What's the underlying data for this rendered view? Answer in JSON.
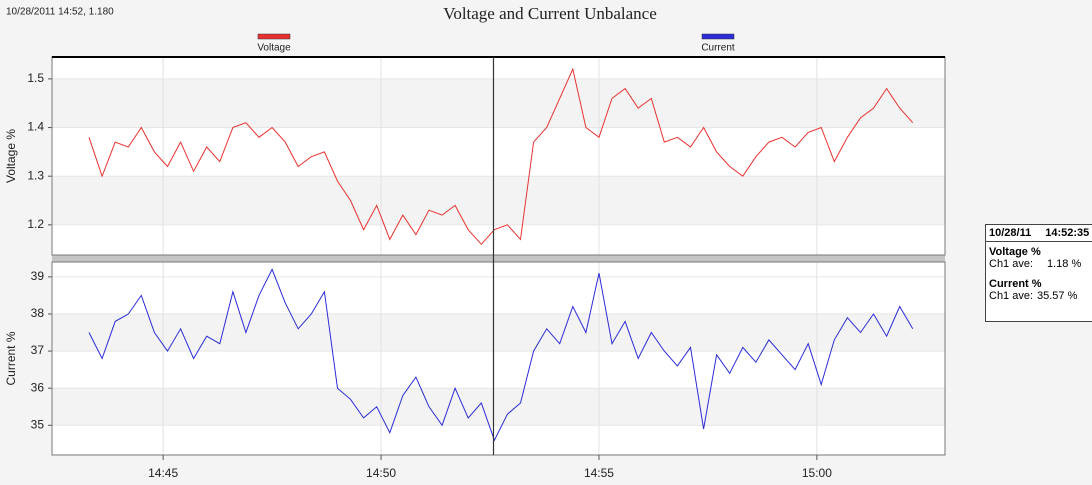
{
  "header": {
    "status": "10/28/2011 14:52, 1.180",
    "title": "Voltage and Current Unbalance"
  },
  "cursor": {
    "x": 892.58
  },
  "readout": {
    "date": "10/28/11",
    "time": "14:52:35",
    "groups": [
      {
        "title": "Voltage %",
        "label": "Ch1 ave:",
        "value": "1.18 %"
      },
      {
        "title": "Current %",
        "label": "Ch1 ave:",
        "value": "35.57 %"
      }
    ]
  },
  "chart_data": [
    {
      "type": "line",
      "y_label": "Voltage %",
      "x": [
        883.3,
        883.6,
        883.9,
        884.2,
        884.5,
        884.8,
        885.1,
        885.4,
        885.7,
        886.0,
        886.3,
        886.6,
        886.9,
        887.2,
        887.5,
        887.8,
        888.1,
        888.4,
        888.7,
        889.0,
        889.3,
        889.6,
        889.9,
        890.2,
        890.5,
        890.8,
        891.1,
        891.4,
        891.7,
        892.0,
        892.3,
        892.6,
        892.9,
        893.2,
        893.5,
        893.8,
        894.1,
        894.4,
        894.7,
        895.0,
        895.3,
        895.6,
        895.9,
        896.2,
        896.5,
        896.8,
        897.1,
        897.4,
        897.7,
        898.0,
        898.3,
        898.6,
        898.9,
        899.2,
        899.5,
        899.8,
        900.1,
        900.4,
        900.7,
        901.0,
        901.3,
        901.6,
        901.9,
        902.2
      ],
      "series": [
        {
          "name": "Voltage",
          "color": "#e8312f",
          "values": [
            1.38,
            1.3,
            1.37,
            1.36,
            1.4,
            1.35,
            1.32,
            1.37,
            1.31,
            1.36,
            1.33,
            1.4,
            1.41,
            1.38,
            1.4,
            1.37,
            1.32,
            1.34,
            1.35,
            1.29,
            1.25,
            1.19,
            1.24,
            1.17,
            1.22,
            1.18,
            1.23,
            1.22,
            1.24,
            1.19,
            1.16,
            1.19,
            1.2,
            1.17,
            1.37,
            1.4,
            1.46,
            1.52,
            1.4,
            1.38,
            1.46,
            1.48,
            1.44,
            1.46,
            1.37,
            1.38,
            1.36,
            1.4,
            1.35,
            1.32,
            1.3,
            1.34,
            1.37,
            1.38,
            1.36,
            1.39,
            1.4,
            1.33,
            1.38,
            1.42,
            1.44,
            1.48,
            1.44,
            1.41
          ]
        }
      ],
      "xlim": [
        882.45,
        902.94
      ],
      "ylim": [
        1.138,
        1.545
      ],
      "yticks": [
        1.2,
        1.3,
        1.4,
        1.5
      ],
      "grid": true
    },
    {
      "type": "line",
      "y_label": "Current %",
      "x": [
        883.3,
        883.6,
        883.9,
        884.2,
        884.5,
        884.8,
        885.1,
        885.4,
        885.7,
        886.0,
        886.3,
        886.6,
        886.9,
        887.2,
        887.5,
        887.8,
        888.1,
        888.4,
        888.7,
        889.0,
        889.3,
        889.6,
        889.9,
        890.2,
        890.5,
        890.8,
        891.1,
        891.4,
        891.7,
        892.0,
        892.3,
        892.6,
        892.9,
        893.2,
        893.5,
        893.8,
        894.1,
        894.4,
        894.7,
        895.0,
        895.3,
        895.6,
        895.9,
        896.2,
        896.5,
        896.8,
        897.1,
        897.4,
        897.7,
        898.0,
        898.3,
        898.6,
        898.9,
        899.2,
        899.5,
        899.8,
        900.1,
        900.4,
        900.7,
        901.0,
        901.3,
        901.6,
        901.9,
        902.2
      ],
      "series": [
        {
          "name": "Current",
          "color": "#2b2bd8",
          "values": [
            37.5,
            36.8,
            37.8,
            38.0,
            38.5,
            37.5,
            37.0,
            37.6,
            36.8,
            37.4,
            37.2,
            38.6,
            37.5,
            38.5,
            39.2,
            38.3,
            37.6,
            38.0,
            38.6,
            36.0,
            35.7,
            35.2,
            35.5,
            34.8,
            35.8,
            36.3,
            35.5,
            35.0,
            36.0,
            35.2,
            35.6,
            34.6,
            35.3,
            35.6,
            37.0,
            37.6,
            37.2,
            38.2,
            37.5,
            39.1,
            37.2,
            37.8,
            36.8,
            37.5,
            37.0,
            36.6,
            37.1,
            34.9,
            36.9,
            36.4,
            37.1,
            36.7,
            37.3,
            36.9,
            36.5,
            37.2,
            36.1,
            37.3,
            37.9,
            37.5,
            38.0,
            37.4,
            38.2,
            37.6
          ]
        }
      ],
      "xlim": [
        882.45,
        902.94
      ],
      "ylim": [
        34.2,
        39.4
      ],
      "yticks": [
        35,
        36,
        37,
        38,
        39
      ],
      "xticks": [
        {
          "value": 885,
          "label": "14:45"
        },
        {
          "value": 890,
          "label": "14:50"
        },
        {
          "value": 895,
          "label": "14:55"
        },
        {
          "value": 900,
          "label": "15:00"
        }
      ],
      "grid": true
    }
  ]
}
